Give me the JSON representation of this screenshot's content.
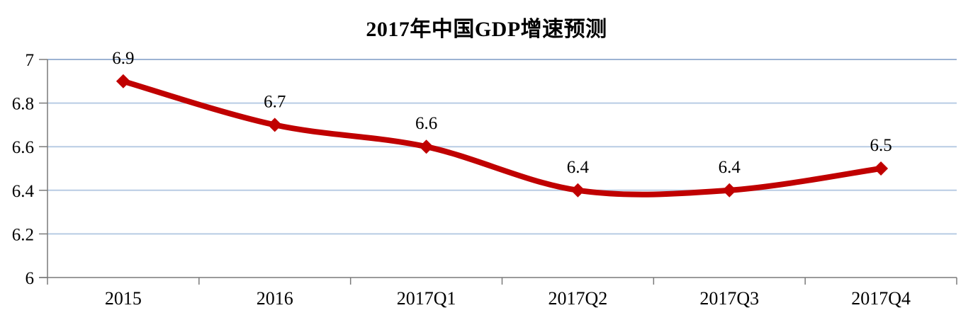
{
  "chart": {
    "title": "2017年中国GDP增速预测"
  },
  "chart_data": {
    "type": "line",
    "smooth": true,
    "title": "2017年中国GDP增速预测",
    "categories": [
      "2015",
      "2016",
      "2017Q1",
      "2017Q2",
      "2017Q3",
      "2017Q4"
    ],
    "values": [
      6.9,
      6.7,
      6.6,
      6.4,
      6.4,
      6.5
    ],
    "data_labels": [
      "6.9",
      "6.7",
      "6.6",
      "6.4",
      "6.4",
      "6.5"
    ],
    "xlabel": "",
    "ylabel": "",
    "ylim": [
      6,
      7
    ],
    "yticks": [
      6,
      6.2,
      6.4,
      6.6,
      6.8,
      7
    ],
    "ytick_labels": [
      "6",
      "6.2",
      "6.4",
      "6.6",
      "6.8",
      "7"
    ],
    "grid": "horizontal",
    "legend": "none",
    "marker": "diamond",
    "colors": {
      "line": "#c00000",
      "marker": "#c00000",
      "gridline": "#b8cce4",
      "gridline_top": "#9db3d3",
      "axis": "#7a7a7a",
      "text": "#000000",
      "background": "#ffffff"
    }
  }
}
